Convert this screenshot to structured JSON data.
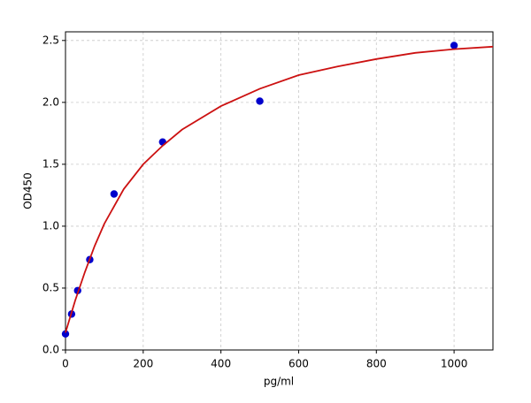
{
  "chart_data": {
    "type": "scatter",
    "x_label": "pg/ml",
    "y_label": "OD450",
    "xlim": [
      0,
      1100
    ],
    "ylim": [
      0,
      2.57
    ],
    "xticks": [
      0,
      200,
      400,
      600,
      800,
      1000
    ],
    "yticks": [
      {
        "value": 0,
        "label": "0.0"
      },
      0.5,
      {
        "value": 1,
        "label": "1.0"
      },
      1.5,
      {
        "value": 2,
        "label": "2.0"
      },
      2.5
    ],
    "grid": true,
    "series": [
      {
        "type": "scatter",
        "color": "#0000cc",
        "x": [
          0,
          15.625,
          31.25,
          62.5,
          125,
          250,
          500,
          1000
        ],
        "values": [
          0.13,
          0.29,
          0.48,
          0.73,
          1.26,
          1.68,
          2.01,
          2.46
        ]
      },
      {
        "type": "line",
        "color": "#cc1111",
        "x": [
          0,
          25,
          50,
          75,
          100,
          150,
          200,
          250,
          300,
          400,
          500,
          600,
          700,
          800,
          900,
          1000,
          1100
        ],
        "values": [
          0.14,
          0.4,
          0.63,
          0.84,
          1.02,
          1.3,
          1.5,
          1.65,
          1.78,
          1.97,
          2.11,
          2.22,
          2.29,
          2.35,
          2.4,
          2.43,
          2.45
        ]
      }
    ]
  }
}
